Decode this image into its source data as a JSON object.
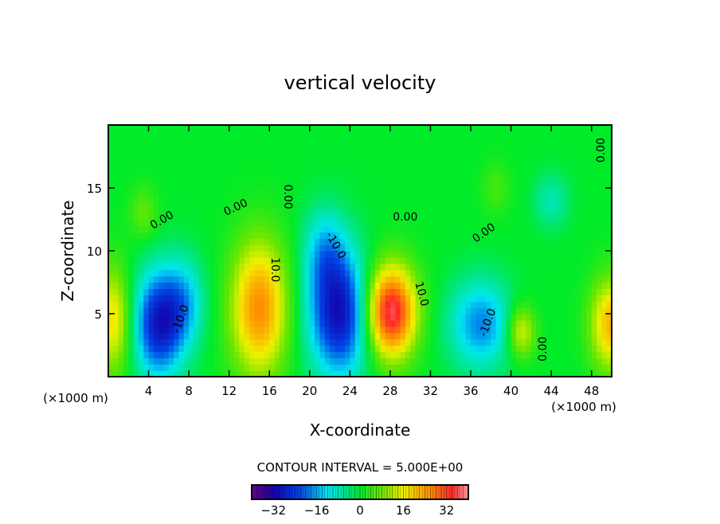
{
  "chart_data": {
    "type": "heatmap",
    "title": "vertical velocity",
    "xlabel": "X-coordinate",
    "ylabel": "Z-coordinate",
    "x_unit": "(×1000 m)",
    "y_unit": "(×1000 m)",
    "xlim": [
      0,
      50
    ],
    "ylim": [
      0,
      20
    ],
    "xticks": [
      4,
      8,
      12,
      16,
      20,
      24,
      28,
      32,
      36,
      40,
      44,
      48
    ],
    "yticks": [
      5,
      10,
      15
    ],
    "contour_interval_text": "CONTOUR INTERVAL = 5.000E+00",
    "colorbar": {
      "range": [
        -40,
        40
      ],
      "ticks": [
        -32,
        -16,
        0,
        16,
        32
      ]
    },
    "field_features": [
      {
        "x": 0.5,
        "z": 4.5,
        "w": 18,
        "sx": 1.3,
        "sz": 3.0
      },
      {
        "x": 5,
        "z": 4.2,
        "w": -28,
        "sx": 1.8,
        "sz": 3.0
      },
      {
        "x": 7.5,
        "z": 6,
        "w": -12,
        "sx": 1.5,
        "sz": 2.5
      },
      {
        "x": 15,
        "z": 5.5,
        "w": 26,
        "sx": 2.0,
        "sz": 3.8
      },
      {
        "x": 23,
        "z": 5,
        "w": -30,
        "sx": 2.2,
        "sz": 3.5
      },
      {
        "x": 21.5,
        "z": 10,
        "w": -12,
        "sx": 1.5,
        "sz": 2.5
      },
      {
        "x": 28,
        "z": 5.2,
        "w": 38,
        "sx": 1.8,
        "sz": 2.6
      },
      {
        "x": 37,
        "z": 4.2,
        "w": -18,
        "sx": 2.2,
        "sz": 2.5
      },
      {
        "x": 41,
        "z": 3.6,
        "w": 16,
        "sx": 1.0,
        "sz": 1.5
      },
      {
        "x": 50,
        "z": 4.2,
        "w": 22,
        "sx": 1.5,
        "sz": 2.6
      },
      {
        "x": 3.5,
        "z": 13,
        "w": 7,
        "sx": 1.0,
        "sz": 1.5
      },
      {
        "x": 44,
        "z": 14,
        "w": -8,
        "sx": 1.2,
        "sz": 1.5
      },
      {
        "x": 38.5,
        "z": 15,
        "w": 5,
        "sx": 1.0,
        "sz": 1.5
      }
    ],
    "contour_labels": [
      {
        "text": "0.00",
        "x": 5.5,
        "z": 12.2,
        "rot": -30
      },
      {
        "text": "0.00",
        "x": 12.8,
        "z": 13.2,
        "rot": -25
      },
      {
        "text": "0.00",
        "x": 17.5,
        "z": 14.3,
        "rot": 90
      },
      {
        "text": "0.00",
        "x": 29.5,
        "z": 12.4,
        "rot": 0
      },
      {
        "text": "0.00",
        "x": 37.5,
        "z": 11.2,
        "rot": -35
      },
      {
        "text": "0.00",
        "x": 43.5,
        "z": 2.2,
        "rot": -90
      },
      {
        "text": "0.00",
        "x": 49.3,
        "z": 18,
        "rot": -90
      },
      {
        "text": "-10.0",
        "x": 22.3,
        "z": 10.3,
        "rot": 60
      },
      {
        "text": "10.0",
        "x": 16.2,
        "z": 8.5,
        "rot": 90
      },
      {
        "text": "-10.0",
        "x": 7.5,
        "z": 4.5,
        "rot": -70
      },
      {
        "text": "10.0",
        "x": 30.8,
        "z": 6.5,
        "rot": 75
      },
      {
        "text": "-10.0",
        "x": 38,
        "z": 4.2,
        "rot": -70
      }
    ]
  }
}
